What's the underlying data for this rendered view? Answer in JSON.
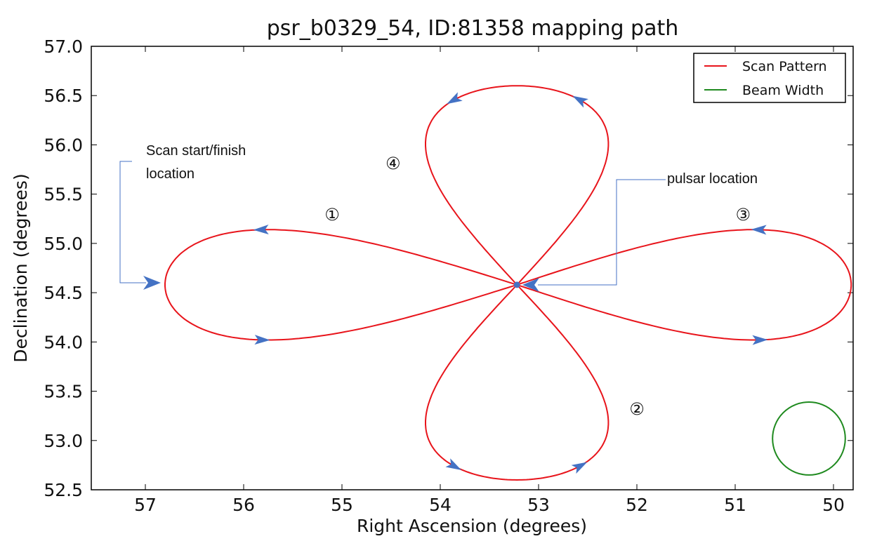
{
  "chart_data": {
    "type": "line",
    "title": "psr_b0329_54, ID:81358 mapping path",
    "xlabel": "Right Ascension (degrees)",
    "ylabel": "Declination (degrees)",
    "xlim": [
      57.55,
      49.8
    ],
    "ylim": [
      52.5,
      57.0
    ],
    "x_inverted": true,
    "xticks": [
      57,
      56,
      55,
      54,
      53,
      52,
      51,
      50
    ],
    "xtick_labels": [
      "57",
      "56",
      "55",
      "54",
      "53",
      "52",
      "51",
      "50"
    ],
    "yticks": [
      52.5,
      53.0,
      53.5,
      54.0,
      54.5,
      55.0,
      55.5,
      56.0,
      56.5,
      57.0
    ],
    "ytick_labels": [
      "52.5",
      "53.0",
      "53.5",
      "54.0",
      "54.5",
      "55.0",
      "55.5",
      "56.0",
      "56.5",
      "57.0"
    ],
    "grid": false,
    "legend_position": "top-right",
    "legend": [
      {
        "name": "Scan Pattern",
        "color": "#e8141b"
      },
      {
        "name": "Beam Width",
        "color": "#1f8a1f"
      }
    ],
    "center": {
      "x": 53.22,
      "y": 54.58
    },
    "lobes": {
      "east": {
        "extent_x": 56.8,
        "extent_y": 54.58,
        "half_width_y": 0.56
      },
      "west": {
        "extent_x": 49.82,
        "extent_y": 54.58,
        "half_width_y": 0.56
      },
      "north": {
        "extent_x": 53.22,
        "extent_y": 56.6,
        "half_width_x": 0.93
      },
      "south": {
        "extent_x": 53.22,
        "extent_y": 52.6,
        "half_width_x": 0.93
      }
    },
    "beam": {
      "center_x": 50.25,
      "center_y": 53.02,
      "radius_deg": 0.37
    },
    "annotations": [
      {
        "id": "start",
        "text_lines": [
          "Scan start/finish",
          "location"
        ],
        "target": {
          "x": 56.8,
          "y": 54.6
        }
      },
      {
        "id": "pulsar",
        "text_lines": [
          "pulsar location"
        ],
        "target": {
          "x": 53.22,
          "y": 54.58
        }
      }
    ],
    "order_markers": [
      {
        "label": "①",
        "x": 55.1,
        "y": 55.29
      },
      {
        "label": "②",
        "x": 52.0,
        "y": 53.32
      },
      {
        "label": "③",
        "x": 50.92,
        "y": 55.29
      },
      {
        "label": "④",
        "x": 54.48,
        "y": 55.81
      }
    ]
  },
  "colors": {
    "scan": "#e8141b",
    "beam": "#1f8a1f",
    "arrow": "#4472c4",
    "callout": "#4472c4"
  }
}
